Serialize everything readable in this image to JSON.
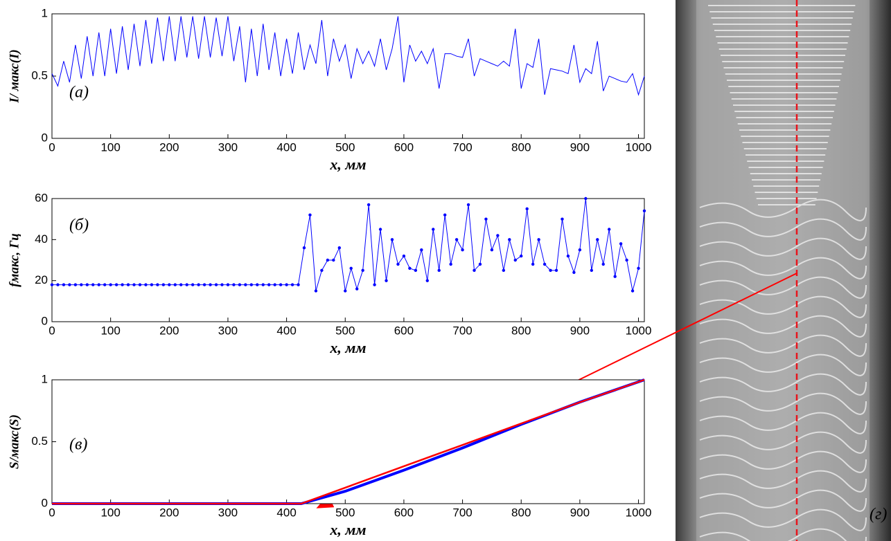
{
  "chart_data": [
    {
      "type": "line",
      "annotation": "(а)",
      "ylabel": "I/ макс(I)",
      "xlabel": "x, мм",
      "x": [
        0,
        10,
        20,
        30,
        40,
        50,
        60,
        70,
        80,
        90,
        100,
        110,
        120,
        130,
        140,
        150,
        160,
        170,
        180,
        190,
        200,
        210,
        220,
        230,
        240,
        250,
        260,
        270,
        280,
        290,
        300,
        310,
        320,
        330,
        340,
        350,
        360,
        370,
        380,
        390,
        400,
        410,
        420,
        430,
        440,
        450,
        460,
        470,
        480,
        490,
        500,
        510,
        520,
        530,
        540,
        550,
        560,
        570,
        580,
        590,
        600,
        610,
        620,
        630,
        640,
        650,
        660,
        670,
        680,
        690,
        700,
        710,
        720,
        730,
        740,
        750,
        760,
        770,
        780,
        790,
        800,
        810,
        820,
        830,
        840,
        850,
        860,
        870,
        880,
        890,
        900,
        910,
        920,
        930,
        940,
        950,
        960,
        970,
        980,
        990,
        1000,
        1010
      ],
      "series": [
        {
          "color": "#0000ff",
          "values": [
            0.52,
            0.42,
            0.62,
            0.45,
            0.75,
            0.48,
            0.82,
            0.5,
            0.85,
            0.5,
            0.88,
            0.52,
            0.9,
            0.55,
            0.92,
            0.58,
            0.95,
            0.6,
            0.97,
            0.62,
            0.98,
            0.62,
            0.98,
            0.65,
            0.98,
            0.64,
            0.98,
            0.65,
            0.97,
            0.66,
            0.98,
            0.62,
            0.9,
            0.45,
            0.88,
            0.5,
            0.92,
            0.55,
            0.85,
            0.5,
            0.8,
            0.52,
            0.85,
            0.55,
            0.75,
            0.6,
            0.95,
            0.5,
            0.8,
            0.62,
            0.75,
            0.48,
            0.72,
            0.6,
            0.7,
            0.58,
            0.8,
            0.55,
            0.72,
            0.98,
            0.45,
            0.75,
            0.62,
            0.7,
            0.6,
            0.72,
            0.4,
            0.68,
            0.68,
            0.66,
            0.65,
            0.8,
            0.5,
            0.64,
            0.62,
            0.6,
            0.58,
            0.62,
            0.58,
            0.88,
            0.4,
            0.6,
            0.57,
            0.8,
            0.35,
            0.56,
            0.55,
            0.54,
            0.52,
            0.75,
            0.45,
            0.56,
            0.52,
            0.78,
            0.38,
            0.5,
            0.48,
            0.46,
            0.45,
            0.52,
            0.35,
            0.5
          ]
        }
      ],
      "xlim": [
        0,
        1010
      ],
      "xticks": [
        0,
        100,
        200,
        300,
        400,
        500,
        600,
        700,
        800,
        900,
        1000
      ],
      "ylim": [
        0,
        1
      ],
      "yticks": [
        0,
        0.5,
        1
      ],
      "markers": false
    },
    {
      "type": "line",
      "annotation": "(б)",
      "ylabel": "fмакс, Гц",
      "xlabel": "x, мм",
      "x": [
        0,
        10,
        20,
        30,
        40,
        50,
        60,
        70,
        80,
        90,
        100,
        110,
        120,
        130,
        140,
        150,
        160,
        170,
        180,
        190,
        200,
        210,
        220,
        230,
        240,
        250,
        260,
        270,
        280,
        290,
        300,
        310,
        320,
        330,
        340,
        350,
        360,
        370,
        380,
        390,
        400,
        410,
        420,
        430,
        440,
        450,
        460,
        470,
        480,
        490,
        500,
        510,
        520,
        530,
        540,
        550,
        560,
        570,
        580,
        590,
        600,
        610,
        620,
        630,
        640,
        650,
        660,
        670,
        680,
        690,
        700,
        710,
        720,
        730,
        740,
        750,
        760,
        770,
        780,
        790,
        800,
        810,
        820,
        830,
        840,
        850,
        860,
        870,
        880,
        890,
        900,
        910,
        920,
        930,
        940,
        950,
        960,
        970,
        980,
        990,
        1000,
        1010
      ],
      "series": [
        {
          "color": "#0000ff",
          "values": [
            18,
            18,
            18,
            18,
            18,
            18,
            18,
            18,
            18,
            18,
            18,
            18,
            18,
            18,
            18,
            18,
            18,
            18,
            18,
            18,
            18,
            18,
            18,
            18,
            18,
            18,
            18,
            18,
            18,
            18,
            18,
            18,
            18,
            18,
            18,
            18,
            18,
            18,
            18,
            18,
            18,
            18,
            18,
            36,
            52,
            15,
            25,
            30,
            30,
            36,
            15,
            26,
            16,
            25,
            57,
            18,
            45,
            20,
            40,
            28,
            32,
            26,
            25,
            35,
            20,
            45,
            25,
            52,
            28,
            40,
            35,
            57,
            25,
            28,
            50,
            35,
            42,
            25,
            40,
            30,
            32,
            55,
            28,
            40,
            28,
            25,
            25,
            50,
            32,
            24,
            35,
            60,
            25,
            40,
            28,
            45,
            22,
            38,
            30,
            15,
            26,
            54
          ]
        }
      ],
      "xlim": [
        0,
        1010
      ],
      "xticks": [
        0,
        100,
        200,
        300,
        400,
        500,
        600,
        700,
        800,
        900,
        1000
      ],
      "ylim": [
        0,
        60
      ],
      "yticks": [
        0,
        20,
        40,
        60
      ],
      "markers": true
    },
    {
      "type": "line",
      "annotation": "(в)",
      "ylabel": "S/макс(S)",
      "xlabel": "x, мм",
      "x": [
        0,
        425,
        500,
        600,
        700,
        800,
        900,
        1010
      ],
      "series": [
        {
          "color": "#0000ff",
          "values": [
            0,
            0,
            0.1,
            0.27,
            0.45,
            0.64,
            0.82,
            1
          ]
        },
        {
          "color": "#ff0000",
          "values": [
            0,
            0,
            0.129,
            0.302,
            0.474,
            0.647,
            0.819,
            1
          ]
        }
      ],
      "xlim": [
        0,
        1010
      ],
      "xticks": [
        0,
        100,
        200,
        300,
        400,
        500,
        600,
        700,
        800,
        900,
        1000
      ],
      "ylim": [
        0,
        1
      ],
      "yticks": [
        0,
        0.5,
        1
      ],
      "markers": false
    }
  ],
  "photo": {
    "annotation": "(г)"
  }
}
